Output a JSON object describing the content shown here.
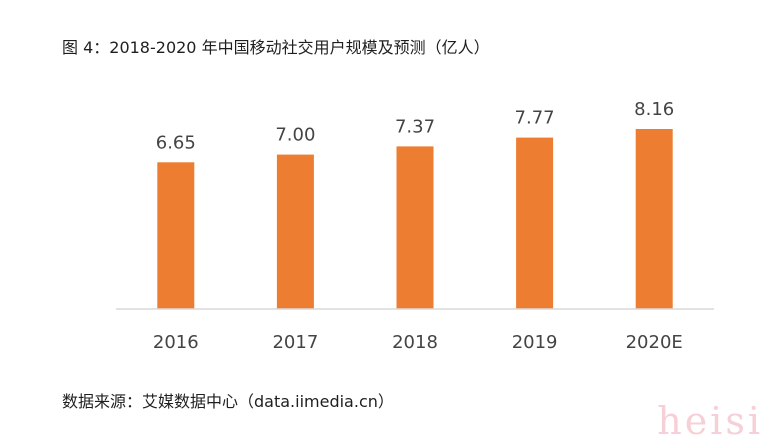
{
  "title": "图 4：2018-2020 年中国移动社交用户规模及预测（亿人）",
  "source": "数据来源：艾媒数据中心（data.iimedia.cn）",
  "watermark": "heisi",
  "colors": {
    "bar": "#ed7d31",
    "axis": "#d9d9d9",
    "text": "#444444"
  },
  "chart_data": {
    "type": "bar",
    "title": "图 4：2018-2020 年中国移动社交用户规模及预测（亿人）",
    "categories": [
      "2016",
      "2017",
      "2018",
      "2019",
      "2020E"
    ],
    "values": [
      6.65,
      7.0,
      7.37,
      7.77,
      8.16
    ],
    "data_labels": [
      "6.65",
      "7.00",
      "7.37",
      "7.77",
      "8.16"
    ],
    "xlabel": "",
    "ylabel": "",
    "ylim": [
      0,
      9.7
    ],
    "grid": false,
    "legend": "none"
  }
}
